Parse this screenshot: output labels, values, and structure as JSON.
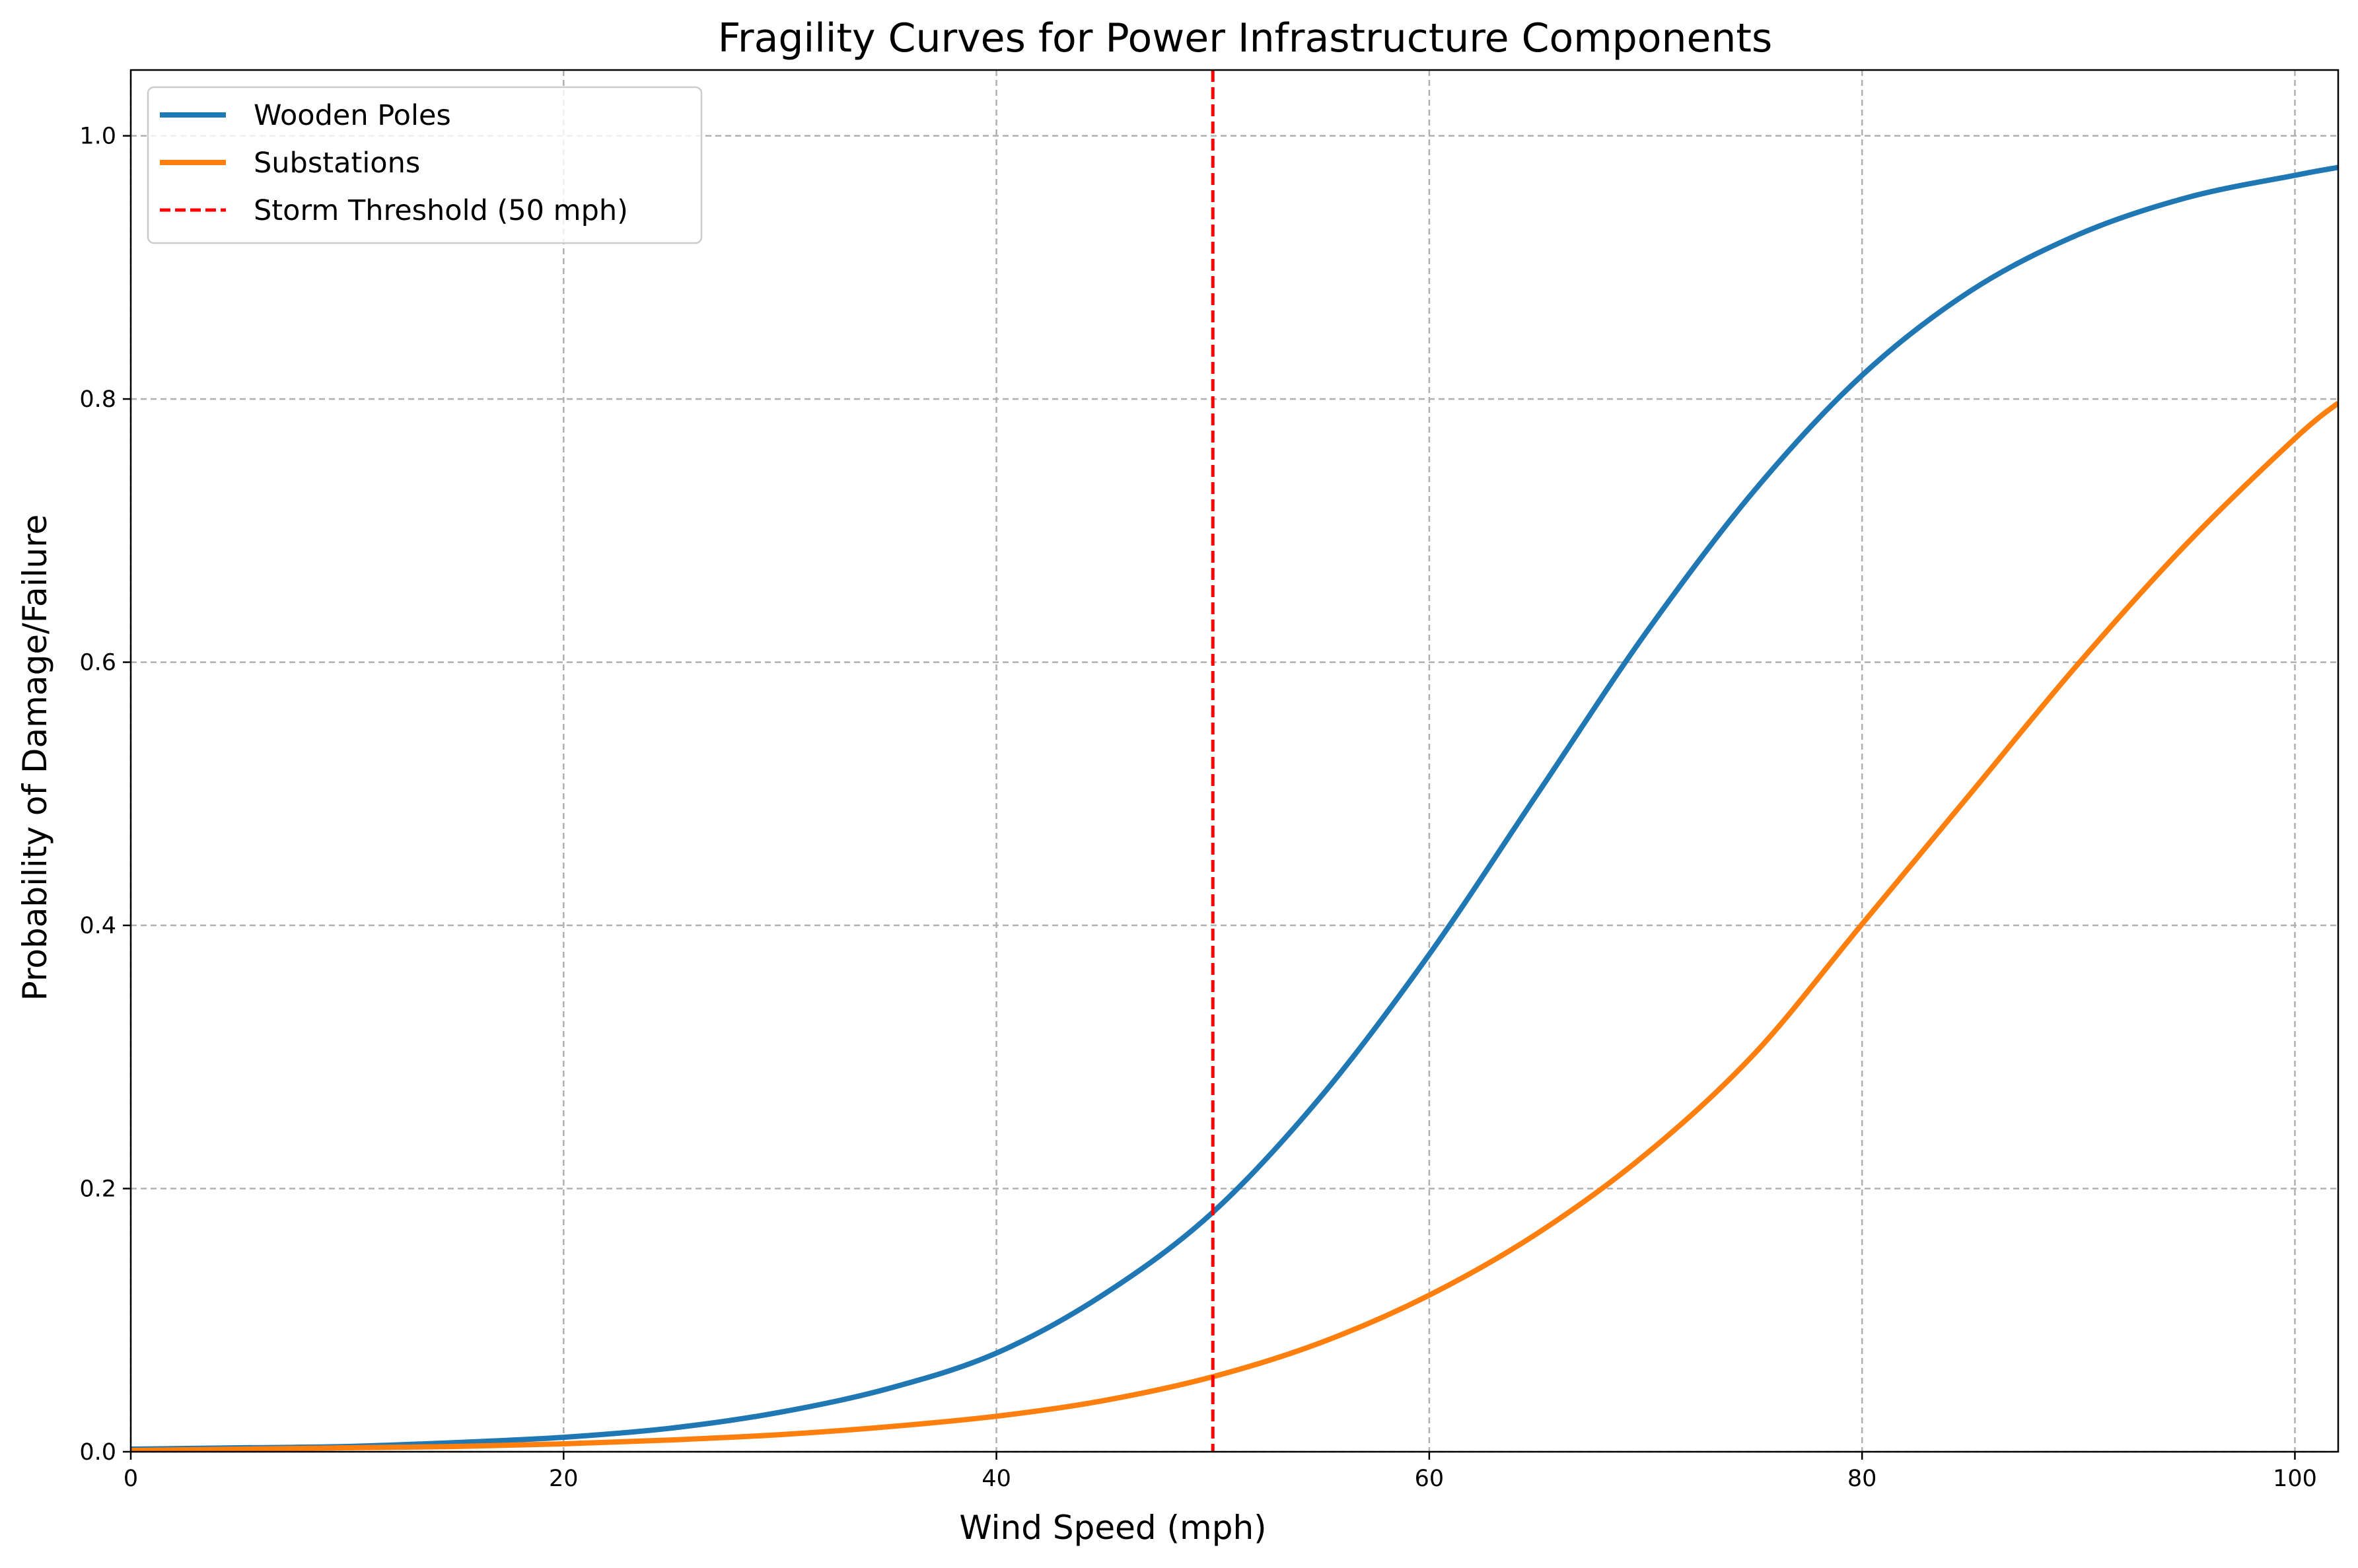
{
  "chart_data": {
    "type": "line",
    "title": "Fragility Curves for Power Infrastructure Components",
    "xlabel": "Wind Speed (mph)",
    "ylabel": "Probability of Damage/Failure",
    "xlim": [
      0,
      102
    ],
    "ylim": [
      0,
      1.05
    ],
    "xticks": [
      0,
      20,
      40,
      60,
      80,
      100
    ],
    "xtick_labels": [
      "0",
      "20",
      "40",
      "60",
      "80",
      "100"
    ],
    "yticks": [
      0,
      0.2,
      0.4,
      0.6,
      0.8,
      1.0
    ],
    "ytick_labels": [
      "0.0",
      "0.2",
      "0.4",
      "0.6",
      "0.8",
      "1.0"
    ],
    "grid": true,
    "legend_position": "top-left",
    "series": [
      {
        "name": "Wooden Poles",
        "color": "#1f77b4",
        "x": [
          0,
          5,
          10,
          15,
          20,
          25,
          30,
          35,
          40,
          45,
          50,
          55,
          60,
          65,
          70,
          75,
          80,
          85,
          90,
          95,
          100,
          102
        ],
        "y": [
          0.002,
          0.003,
          0.004,
          0.007,
          0.011,
          0.018,
          0.03,
          0.048,
          0.075,
          0.12,
          0.182,
          0.27,
          0.378,
          0.5,
          0.622,
          0.73,
          0.818,
          0.882,
          0.925,
          0.953,
          0.97,
          0.976
        ]
      },
      {
        "name": "Substations",
        "color": "#ff7f0e",
        "x": [
          0,
          5,
          10,
          15,
          20,
          25,
          30,
          35,
          40,
          45,
          50,
          55,
          60,
          65,
          70,
          75,
          80,
          85,
          90,
          95,
          100,
          102
        ],
        "y": [
          0.001,
          0.002,
          0.003,
          0.004,
          0.006,
          0.009,
          0.013,
          0.019,
          0.027,
          0.039,
          0.057,
          0.083,
          0.119,
          0.166,
          0.226,
          0.302,
          0.401,
          0.5,
          0.599,
          0.69,
          0.77,
          0.797
        ]
      }
    ],
    "annotations": [
      {
        "type": "vline",
        "x": 50,
        "name": "Storm Threshold (50 mph)",
        "color": "#ff0000",
        "style": "dashed"
      }
    ]
  }
}
